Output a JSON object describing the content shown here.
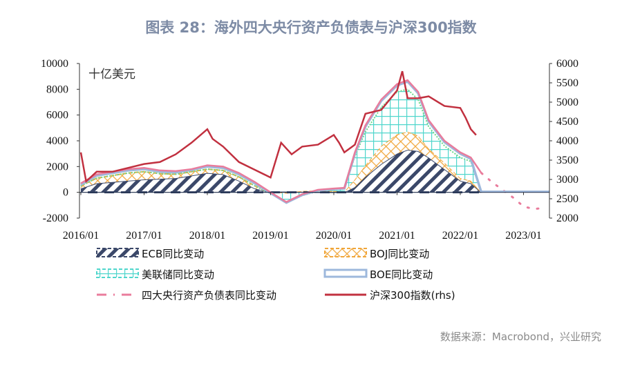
{
  "title": "图表 28：海外四大央行资产负债表与沪深300指数",
  "source": "数据来源：Macrobond，兴业研究",
  "chart_data": {
    "type": "area",
    "title": "图表 28：海外四大央行资产负债表与沪深300指数",
    "unit_label": "十亿美元",
    "x_ticks": [
      "2016/01",
      "2017/01",
      "2018/01",
      "2019/01",
      "2020/01",
      "2021/01",
      "2022/01",
      "2023/01"
    ],
    "y_left": {
      "range": [
        -2000,
        10000
      ],
      "ticks": [
        "10000",
        "8000",
        "6000",
        "4000",
        "2000",
        "0",
        "-2000"
      ]
    },
    "y_right": {
      "range": [
        2000,
        6000
      ],
      "ticks": [
        "6000",
        "5500",
        "5000",
        "4500",
        "4000",
        "3500",
        "3000",
        "2500",
        "2000"
      ]
    },
    "grid": false,
    "legend_position": "bottom",
    "stack_dates": [
      "2016-01",
      "2016-04",
      "2016-07",
      "2016-10",
      "2017-01",
      "2017-04",
      "2017-07",
      "2017-10",
      "2018-01",
      "2018-04",
      "2018-07",
      "2018-10",
      "2019-01",
      "2019-04",
      "2019-07",
      "2019-10",
      "2020-01",
      "2020-03",
      "2020-05",
      "2020-07",
      "2020-10",
      "2021-01",
      "2021-03",
      "2021-05",
      "2021-07",
      "2021-10",
      "2022-01",
      "2022-03",
      "2022-05"
    ],
    "series": [
      {
        "name": "ECB同比变动",
        "axis": "left",
        "style": "hatched-area",
        "color": "#3b4869",
        "values": [
          300,
          700,
          800,
          900,
          1000,
          1050,
          1100,
          1300,
          1500,
          1400,
          900,
          300,
          0,
          0,
          0,
          0,
          0,
          0,
          400,
          1200,
          2200,
          3000,
          3300,
          3200,
          2700,
          1800,
          900,
          700,
          0
        ]
      },
      {
        "name": "BOJ同比变动",
        "axis": "left",
        "style": "crosshatch-area",
        "color": "#f0a63a",
        "values": [
          200,
          400,
          500,
          600,
          600,
          400,
          300,
          300,
          300,
          300,
          300,
          200,
          0,
          -100,
          50,
          100,
          100,
          50,
          600,
          900,
          1400,
          1500,
          1400,
          1200,
          700,
          500,
          200,
          200,
          0
        ]
      },
      {
        "name": "美联储同比变动",
        "axis": "left",
        "style": "grid-area",
        "color": "#4fd6cc",
        "values": [
          0,
          0,
          0,
          0,
          0,
          0,
          0,
          0,
          0,
          0,
          0,
          0,
          -100,
          -700,
          -300,
          0,
          100,
          200,
          1800,
          2600,
          3000,
          3300,
          3300,
          2800,
          1700,
          1300,
          1600,
          1500,
          0
        ]
      },
      {
        "name": "BOE同比变动",
        "axis": "left",
        "style": "band",
        "color": "#9db8dc",
        "values": [
          100,
          200,
          200,
          200,
          200,
          150,
          150,
          150,
          200,
          200,
          200,
          200,
          50,
          0,
          50,
          50,
          50,
          50,
          200,
          400,
          500,
          500,
          600,
          500,
          400,
          300,
          300,
          200,
          0
        ]
      },
      {
        "name": "四大央行资产负债表同比变动",
        "axis": "left",
        "style": "line-dotted-tail",
        "color": "#e97c9c",
        "dates": [
          "2016-01",
          "2016-04",
          "2016-07",
          "2016-10",
          "2017-01",
          "2017-04",
          "2017-07",
          "2017-10",
          "2018-01",
          "2018-04",
          "2018-07",
          "2018-10",
          "2019-01",
          "2019-04",
          "2019-07",
          "2019-10",
          "2020-01",
          "2020-03",
          "2020-05",
          "2020-07",
          "2020-10",
          "2021-01",
          "2021-03",
          "2021-05",
          "2021-07",
          "2021-10",
          "2022-01",
          "2022-03",
          "2022-05",
          "2022-07",
          "2022-09",
          "2022-11",
          "2023-01",
          "2023-03",
          "2023-05"
        ],
        "values": [
          700,
          1400,
          1600,
          1800,
          1900,
          1700,
          1650,
          1800,
          2100,
          2000,
          1500,
          800,
          0,
          -750,
          -150,
          200,
          300,
          350,
          3100,
          5200,
          7200,
          8400,
          8700,
          7800,
          5600,
          4000,
          3100,
          2700,
          1500,
          800,
          200,
          -400,
          -1100,
          -1300,
          -1200
        ],
        "solid_until": "2022-05"
      },
      {
        "name": "沪深300指数(rhs)",
        "axis": "right",
        "style": "line",
        "color": "#c1303f",
        "dates": [
          "2016-01",
          "2016-02",
          "2016-04",
          "2016-07",
          "2016-10",
          "2017-01",
          "2017-04",
          "2017-07",
          "2017-10",
          "2018-01",
          "2018-02",
          "2018-04",
          "2018-07",
          "2018-10",
          "2019-01",
          "2019-03",
          "2019-05",
          "2019-07",
          "2019-10",
          "2020-01",
          "2020-02",
          "2020-03",
          "2020-05",
          "2020-07",
          "2020-10",
          "2021-01",
          "2021-02",
          "2021-03",
          "2021-05",
          "2021-07",
          "2021-10",
          "2022-01",
          "2022-02",
          "2022-03",
          "2022-04"
        ],
        "values": [
          3700,
          2950,
          3200,
          3200,
          3300,
          3400,
          3450,
          3650,
          3950,
          4300,
          4050,
          3850,
          3450,
          3250,
          3050,
          3950,
          3650,
          3850,
          3900,
          4150,
          3950,
          3700,
          3900,
          4700,
          4800,
          5300,
          5800,
          5100,
          5100,
          5150,
          4900,
          4850,
          4600,
          4300,
          4150
        ]
      }
    ]
  }
}
